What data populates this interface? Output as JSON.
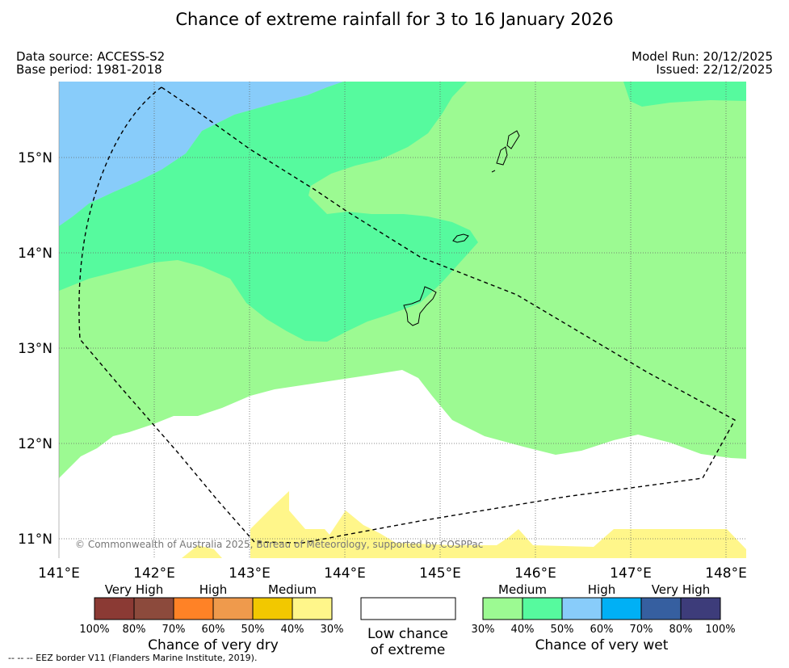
{
  "title": "Chance of extreme rainfall for 3 to 16 January 2026",
  "meta": {
    "data_source": "Data source: ACCESS-S2",
    "base_period": "Base period: 1981-2018",
    "model_run": "Model Run: 20/12/2025",
    "issued": "Issued: 22/12/2025"
  },
  "map": {
    "lon_range": [
      141,
      148.2
    ],
    "lat_range": [
      10.8,
      15.8
    ],
    "lon_ticks": [
      "141°E",
      "142°E",
      "143°E",
      "144°E",
      "145°E",
      "146°E",
      "147°E",
      "148°E"
    ],
    "lat_ticks": [
      "11°N",
      "12°N",
      "13°N",
      "14°N",
      "15°N"
    ],
    "copyright": "© Commonwealth of Australia 2025, Bureau of Meteorology, supported by COSPPac",
    "grid": true
  },
  "legend": {
    "dry": {
      "headers": [
        "Very High",
        "High",
        "Medium"
      ],
      "colors": [
        "#8b3a34",
        "#8c4a3c",
        "#ff8226",
        "#ef9a4c",
        "#f2c800",
        "#fff68a"
      ],
      "ticks": [
        "100%",
        "80%",
        "70%",
        "60%",
        "50%",
        "40%",
        "30%"
      ],
      "caption": "Chance of very dry"
    },
    "low": {
      "caption_line1": "Low chance",
      "caption_line2": "of extreme"
    },
    "wet": {
      "headers": [
        "Medium",
        "High",
        "Very High"
      ],
      "colors": [
        "#9cfa92",
        "#56fa9e",
        "#88ccfa",
        "#00b0f5",
        "#365fa0",
        "#3d3c7a"
      ],
      "ticks": [
        "30%",
        "40%",
        "50%",
        "60%",
        "70%",
        "80%",
        "100%"
      ],
      "caption": "Chance of very wet"
    }
  },
  "footnote": "--  --  -- EEZ border V11 (Flanders Marine Institute, 2019)."
}
